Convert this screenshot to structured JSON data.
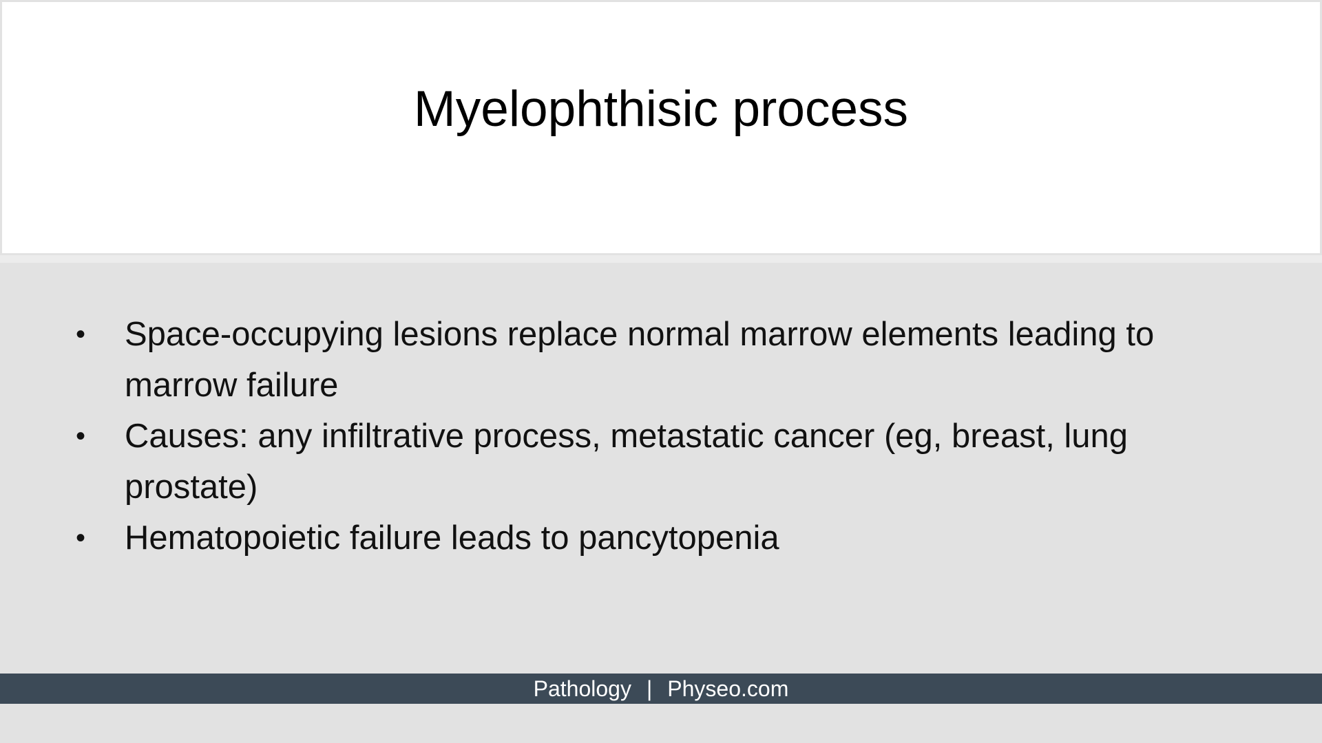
{
  "slide": {
    "title": "Myelophthisic process",
    "bullets": [
      {
        "symbol": "•",
        "text": "Space-occupying lesions replace normal marrow elements leading to marrow failure"
      },
      {
        "symbol": "•",
        "text": "Causes: any infiltrative process, metastatic cancer (eg, breast, lung prostate)"
      },
      {
        "symbol": "•",
        "text": "Hematopoietic failure leads to pancytopenia"
      }
    ]
  },
  "footer": {
    "left": "Pathology",
    "separator": "|",
    "right": "Physeo.com"
  },
  "colors": {
    "title_background": "#ffffff",
    "content_background": "#e2e2e2",
    "footer_background": "#3c4a57",
    "footer_text": "#ffffff"
  }
}
